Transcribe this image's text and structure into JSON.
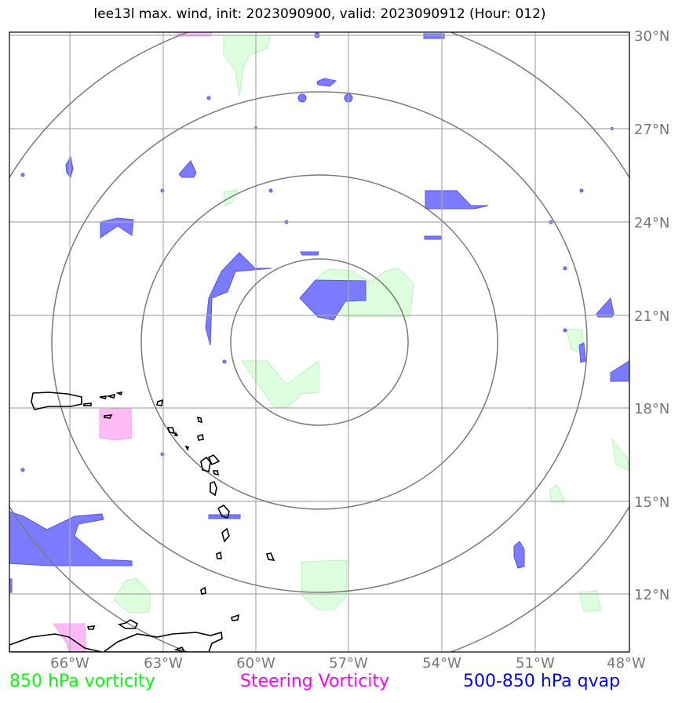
{
  "title": "lee13l max. wind, init: 2023090900, valid: 2023090912 (Hour: 012)",
  "lat_labels": [
    "30°N",
    "27°N",
    "24°N",
    "21°N",
    "18°N",
    "15°N",
    "12°N"
  ],
  "lon_labels": [
    "66°W",
    "63°W",
    "60°W",
    "57°W",
    "54°W",
    "51°W",
    "48°W"
  ],
  "legend": {
    "vort850": {
      "label": "850 hPa vorticity",
      "color": "#00ff00"
    },
    "steering": {
      "label": "Steering Vorticity",
      "color": "#ff00ff"
    },
    "qvap": {
      "label": "500-850 hPa qvap",
      "color": "#0000ff"
    }
  },
  "colors": {
    "vort850_fill": "#ddffdd",
    "steering_fill": "#ffbbf5",
    "qvap_fill": "#7b7bff",
    "grid": "#aaaaaa",
    "range_rings": "#7a7a7a",
    "coastline": "#000000"
  }
}
